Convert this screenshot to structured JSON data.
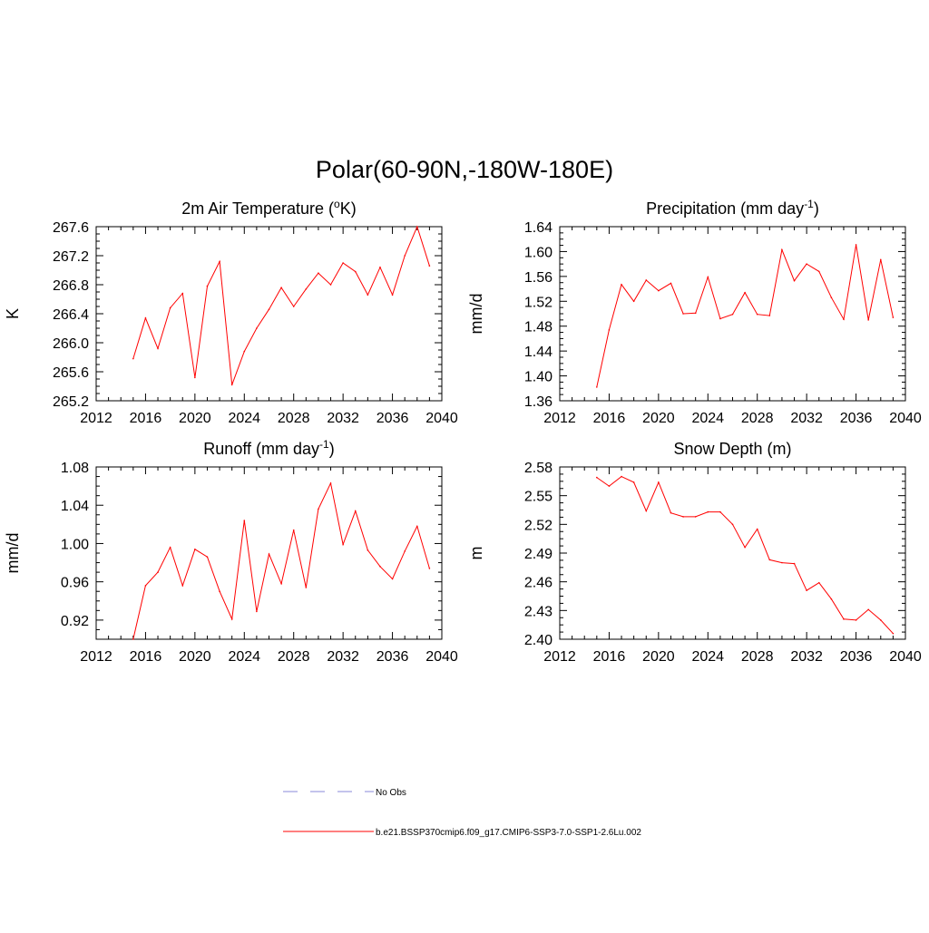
{
  "title": "Polar(60-90N,-180W-180E)",
  "colors": {
    "model": "#ff0000",
    "obs": "#a0a0e0",
    "axis": "#000000"
  },
  "legend": {
    "items": [
      {
        "label": "No Obs",
        "style": "dashed",
        "color": "#a0a0e0"
      },
      {
        "label": "b.e21.BSSP370cmip6.f09_g17.CMIP6-SSP3-7.0-SSP1-2.6Lu.002",
        "style": "solid",
        "color": "#ff0000"
      }
    ]
  },
  "chart_data": [
    {
      "type": "line",
      "title_main": "2m Air Temperature (",
      "title_sup": "o",
      "title_end": "K)",
      "ylabel": "K",
      "xlim": [
        2012,
        2040
      ],
      "ylim": [
        265.2,
        267.6
      ],
      "xticks": [
        2012,
        2016,
        2020,
        2024,
        2028,
        2032,
        2036,
        2040
      ],
      "yticks": [
        265.2,
        265.6,
        266.0,
        266.4,
        266.8,
        267.2,
        267.6
      ],
      "ytick_labels": [
        "265.2",
        "265.6",
        "266.0",
        "266.4",
        "266.8",
        "267.2",
        "267.6"
      ],
      "x": [
        2015,
        2016,
        2017,
        2018,
        2019,
        2020,
        2021,
        2022,
        2023,
        2024,
        2025,
        2026,
        2027,
        2028,
        2029,
        2030,
        2031,
        2032,
        2033,
        2034,
        2035,
        2036,
        2037,
        2038,
        2039
      ],
      "series": [
        {
          "values": [
            265.78,
            266.34,
            265.92,
            266.48,
            266.68,
            265.52,
            266.78,
            267.12,
            265.42,
            265.88,
            266.2,
            266.46,
            266.76,
            266.5,
            266.74,
            266.96,
            266.8,
            267.1,
            266.98,
            266.66,
            267.04,
            266.66,
            267.2,
            267.6,
            267.06
          ]
        }
      ]
    },
    {
      "type": "line",
      "title_main": "Precipitation (mm day",
      "title_sup": "-1",
      "title_end": ")",
      "ylabel": "mm/d",
      "xlim": [
        2012,
        2040
      ],
      "ylim": [
        1.36,
        1.64
      ],
      "xticks": [
        2012,
        2016,
        2020,
        2024,
        2028,
        2032,
        2036,
        2040
      ],
      "yticks": [
        1.36,
        1.4,
        1.44,
        1.48,
        1.52,
        1.56,
        1.6,
        1.64
      ],
      "ytick_labels": [
        "1.36",
        "1.40",
        "1.44",
        "1.48",
        "1.52",
        "1.56",
        "1.60",
        "1.64"
      ],
      "x": [
        2015,
        2016,
        2017,
        2018,
        2019,
        2020,
        2021,
        2022,
        2023,
        2024,
        2025,
        2026,
        2027,
        2028,
        2029,
        2030,
        2031,
        2032,
        2033,
        2034,
        2035,
        2036,
        2037,
        2038,
        2039
      ],
      "series": [
        {
          "values": [
            1.382,
            1.474,
            1.547,
            1.52,
            1.554,
            1.537,
            1.549,
            1.5,
            1.501,
            1.559,
            1.492,
            1.499,
            1.534,
            1.499,
            1.497,
            1.603,
            1.553,
            1.58,
            1.568,
            1.526,
            1.491,
            1.611,
            1.49,
            1.587,
            1.494
          ]
        }
      ]
    },
    {
      "type": "line",
      "title_main": "Runoff (mm day",
      "title_sup": "-1",
      "title_end": ")",
      "ylabel": "mm/d",
      "xlim": [
        2012,
        2040
      ],
      "ylim": [
        0.9,
        1.08
      ],
      "xticks": [
        2012,
        2016,
        2020,
        2024,
        2028,
        2032,
        2036,
        2040
      ],
      "yticks": [
        0.92,
        0.96,
        1.0,
        1.04,
        1.08
      ],
      "ytick_labels": [
        "0.92",
        "0.96",
        "1.00",
        "1.04",
        "1.08"
      ],
      "x": [
        2015,
        2016,
        2017,
        2018,
        2019,
        2020,
        2021,
        2022,
        2023,
        2024,
        2025,
        2026,
        2027,
        2028,
        2029,
        2030,
        2031,
        2032,
        2033,
        2034,
        2035,
        2036,
        2037,
        2038,
        2039
      ],
      "series": [
        {
          "values": [
            0.9,
            0.956,
            0.97,
            0.996,
            0.956,
            0.994,
            0.986,
            0.95,
            0.921,
            1.024,
            0.929,
            0.989,
            0.958,
            1.014,
            0.954,
            1.036,
            1.063,
            0.999,
            1.034,
            0.993,
            0.976,
            0.963,
            0.992,
            1.018,
            0.974
          ]
        }
      ]
    },
    {
      "type": "line",
      "title_main": "Snow Depth (m)",
      "title_sup": "",
      "title_end": "",
      "ylabel": "m",
      "xlim": [
        2012,
        2040
      ],
      "ylim": [
        2.4,
        2.58
      ],
      "xticks": [
        2012,
        2016,
        2020,
        2024,
        2028,
        2032,
        2036,
        2040
      ],
      "yticks": [
        2.4,
        2.43,
        2.46,
        2.49,
        2.52,
        2.55,
        2.58
      ],
      "ytick_labels": [
        "2.40",
        "2.43",
        "2.46",
        "2.49",
        "2.52",
        "2.55",
        "2.58"
      ],
      "x": [
        2015,
        2016,
        2017,
        2018,
        2019,
        2020,
        2021,
        2022,
        2023,
        2024,
        2025,
        2026,
        2027,
        2028,
        2029,
        2030,
        2031,
        2032,
        2033,
        2034,
        2035,
        2036,
        2037,
        2038,
        2039
      ],
      "series": [
        {
          "values": [
            2.569,
            2.56,
            2.57,
            2.564,
            2.534,
            2.564,
            2.532,
            2.528,
            2.528,
            2.533,
            2.533,
            2.52,
            2.496,
            2.515,
            2.483,
            2.48,
            2.479,
            2.451,
            2.459,
            2.442,
            2.421,
            2.42,
            2.431,
            2.42,
            2.406
          ]
        }
      ]
    }
  ]
}
